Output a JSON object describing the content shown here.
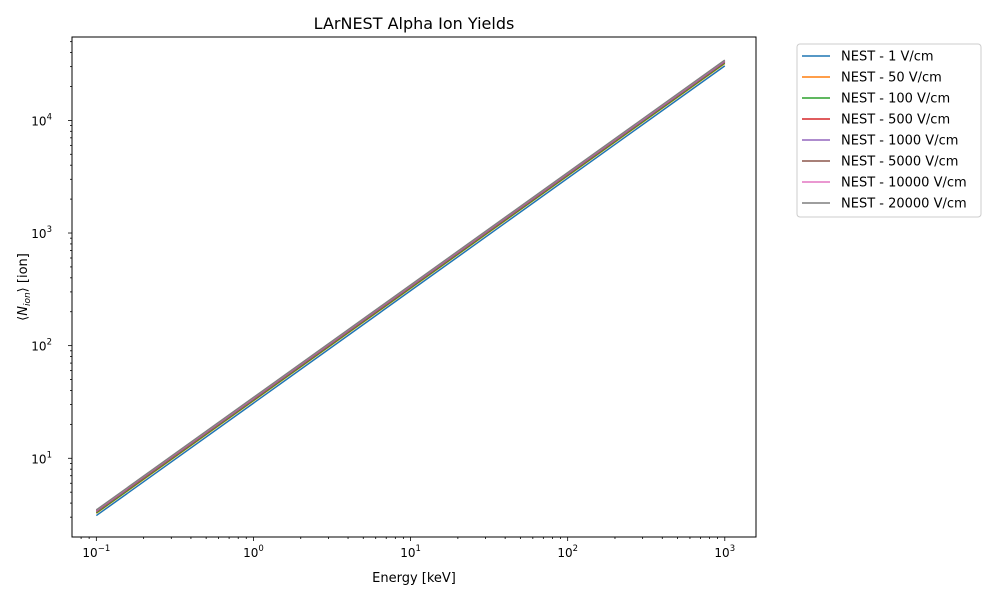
{
  "chart_data": {
    "type": "line",
    "title": "LArNEST Alpha Ion Yields",
    "xlabel": "Energy [keV]",
    "ylabel": "⟨N_ion⟩ [ion]",
    "xscale": "log",
    "yscale": "log",
    "xlim": [
      0.07,
      1580
    ],
    "ylim": [
      2.0,
      55000
    ],
    "x_major_ticks": [
      0.1,
      1,
      10,
      100,
      1000
    ],
    "x_tick_labels": [
      "10",
      "10",
      "10",
      "10",
      "10"
    ],
    "x_tick_exponents": [
      "−1",
      "0",
      "1",
      "2",
      "3"
    ],
    "y_major_ticks": [
      10,
      100,
      1000,
      10000
    ],
    "y_tick_labels": [
      "10",
      "10",
      "10",
      "10"
    ],
    "y_tick_exponents": [
      "1",
      "2",
      "3",
      "4"
    ],
    "legend_position": "outside-right",
    "x": [
      0.1,
      1000
    ],
    "series": [
      {
        "name": "NEST - 1 V/cm",
        "color": "#1f77b4",
        "values": [
          3.1,
          30500
        ]
      },
      {
        "name": "NEST - 50 V/cm",
        "color": "#ff7f0e",
        "values": [
          3.25,
          32000
        ]
      },
      {
        "name": "NEST - 100 V/cm",
        "color": "#2ca02c",
        "values": [
          3.28,
          32300
        ]
      },
      {
        "name": "NEST - 500 V/cm",
        "color": "#d62728",
        "values": [
          3.35,
          33000
        ]
      },
      {
        "name": "NEST - 1000 V/cm",
        "color": "#9467bd",
        "values": [
          3.38,
          33300
        ]
      },
      {
        "name": "NEST - 5000 V/cm",
        "color": "#8c564b",
        "values": [
          3.42,
          33800
        ]
      },
      {
        "name": "NEST - 10000 V/cm",
        "color": "#e377c2",
        "values": [
          3.45,
          34000
        ]
      },
      {
        "name": "NEST - 20000 V/cm",
        "color": "#7f7f7f",
        "values": [
          3.48,
          34300
        ]
      }
    ]
  }
}
